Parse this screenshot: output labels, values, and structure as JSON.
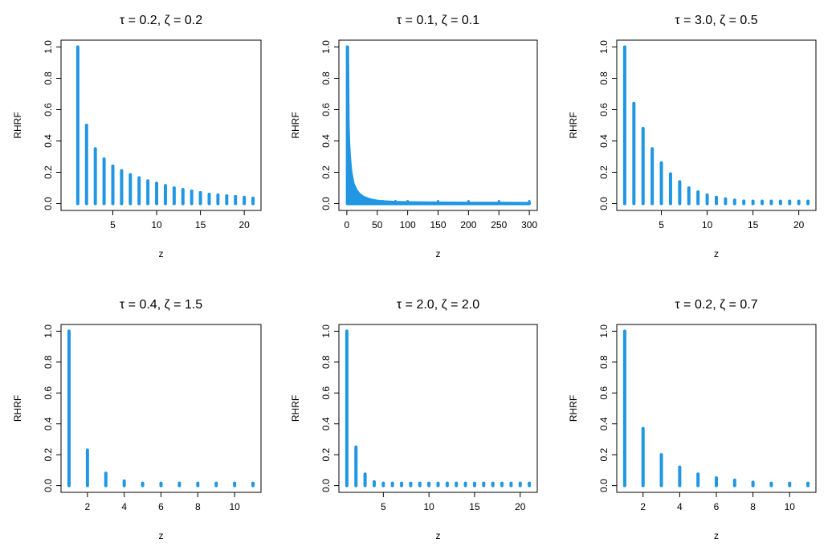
{
  "series_color": "#2196e3",
  "chart_data": [
    {
      "type": "bar",
      "title": "τ = 0.2, ζ = 0.2",
      "xlabel": "z",
      "ylabel": "RHRF",
      "xlim": [
        0,
        21
      ],
      "ylim": [
        0,
        1
      ],
      "xticks": [
        "5",
        "10",
        "15",
        "20"
      ],
      "yticks": [
        "0.0",
        "0.2",
        "0.4",
        "0.6",
        "0.8",
        "1.0"
      ],
      "x": [
        1,
        2,
        3,
        4,
        5,
        6,
        7,
        8,
        9,
        10,
        11,
        12,
        13,
        14,
        15,
        16,
        17,
        18,
        19,
        20,
        21
      ],
      "values": [
        1.0,
        0.5,
        0.35,
        0.285,
        0.24,
        0.21,
        0.185,
        0.165,
        0.145,
        0.13,
        0.115,
        0.1,
        0.09,
        0.08,
        0.07,
        0.06,
        0.055,
        0.05,
        0.045,
        0.04,
        0.035
      ]
    },
    {
      "type": "bar",
      "title": "τ = 0.1, ζ = 0.1",
      "xlabel": "z",
      "ylabel": "RHRF",
      "xlim": [
        0,
        300
      ],
      "ylim": [
        0,
        1
      ],
      "xticks": [
        "0",
        "50",
        "100",
        "150",
        "200",
        "250",
        "300"
      ],
      "yticks": [
        "0.0",
        "0.2",
        "0.4",
        "0.6",
        "0.8",
        "1.0"
      ],
      "x": [
        1,
        2,
        3,
        4,
        5,
        6,
        7,
        8,
        9,
        10,
        12,
        14,
        16,
        18,
        20,
        25,
        30,
        35,
        40,
        50,
        60,
        80,
        100,
        150,
        200,
        250,
        300
      ],
      "values": [
        1.0,
        0.5,
        0.38,
        0.31,
        0.26,
        0.22,
        0.19,
        0.17,
        0.15,
        0.13,
        0.11,
        0.095,
        0.08,
        0.07,
        0.06,
        0.045,
        0.035,
        0.028,
        0.022,
        0.015,
        0.011,
        0.007,
        0.005,
        0.003,
        0.002,
        0.002,
        0.001
      ]
    },
    {
      "type": "bar",
      "title": "τ = 3.0, ζ = 0.5",
      "xlabel": "z",
      "ylabel": "RHRF",
      "xlim": [
        1,
        21
      ],
      "ylim": [
        0,
        1
      ],
      "xticks": [
        "5",
        "10",
        "15",
        "20"
      ],
      "yticks": [
        "0.0",
        "0.2",
        "0.4",
        "0.6",
        "0.8",
        "1.0"
      ],
      "x": [
        1,
        2,
        3,
        4,
        5,
        6,
        7,
        8,
        9,
        10,
        11,
        12,
        13,
        14,
        15,
        16,
        17,
        18,
        19,
        20,
        21
      ],
      "values": [
        1.0,
        0.64,
        0.48,
        0.35,
        0.26,
        0.19,
        0.14,
        0.1,
        0.075,
        0.055,
        0.04,
        0.03,
        0.022,
        0.016,
        0.012,
        0.009,
        0.007,
        0.005,
        0.004,
        0.003,
        0.002
      ]
    },
    {
      "type": "bar",
      "title": "τ = 0.4, ζ = 1.5",
      "xlabel": "z",
      "ylabel": "RHRF",
      "xlim": [
        1,
        11
      ],
      "ylim": [
        0,
        1
      ],
      "xticks": [
        "2",
        "4",
        "6",
        "8",
        "10"
      ],
      "yticks": [
        "0.0",
        "0.2",
        "0.4",
        "0.6",
        "0.8",
        "1.0"
      ],
      "x": [
        1,
        2,
        3,
        4,
        5,
        6,
        7,
        8,
        9,
        10,
        11
      ],
      "values": [
        1.0,
        0.23,
        0.08,
        0.03,
        0.012,
        0.005,
        0.002,
        0.001,
        0.0005,
        0.0003,
        0.0002
      ]
    },
    {
      "type": "bar",
      "title": "τ = 2.0, ζ = 2.0",
      "xlabel": "z",
      "ylabel": "RHRF",
      "xlim": [
        1,
        21
      ],
      "ylim": [
        0,
        1
      ],
      "xticks": [
        "5",
        "10",
        "15",
        "20"
      ],
      "yticks": [
        "0.0",
        "0.2",
        "0.4",
        "0.6",
        "0.8",
        "1.0"
      ],
      "x": [
        1,
        2,
        3,
        4,
        5,
        6,
        7,
        8,
        9,
        10,
        11,
        12,
        13,
        14,
        15,
        16,
        17,
        18,
        19,
        20,
        21
      ],
      "values": [
        1.0,
        0.25,
        0.075,
        0.025,
        0.008,
        0.003,
        0.001,
        0.0005,
        0.0002,
        0.0001,
        0,
        0,
        0,
        0,
        0,
        0,
        0,
        0,
        0,
        0,
        0
      ]
    },
    {
      "type": "bar",
      "title": "τ = 0.2, ζ = 0.7",
      "xlabel": "z",
      "ylabel": "RHRF",
      "xlim": [
        1,
        11
      ],
      "ylim": [
        0,
        1
      ],
      "xticks": [
        "2",
        "4",
        "6",
        "8",
        "10"
      ],
      "yticks": [
        "0.0",
        "0.2",
        "0.4",
        "0.6",
        "0.8",
        "1.0"
      ],
      "x": [
        1,
        2,
        3,
        4,
        5,
        6,
        7,
        8,
        9,
        10,
        11
      ],
      "values": [
        1.0,
        0.37,
        0.2,
        0.12,
        0.075,
        0.05,
        0.035,
        0.022,
        0.015,
        0.01,
        0.006
      ]
    }
  ]
}
